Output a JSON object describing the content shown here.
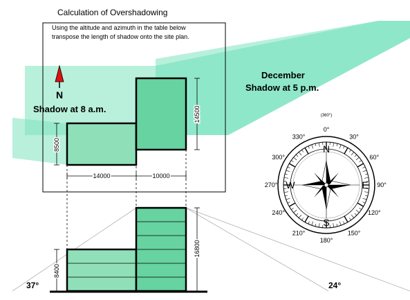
{
  "title": "Calculation of Overshadowing",
  "instructions": {
    "line1": "Using the altitude and azimuth in the table below",
    "line2": "transpose the length of shadow onto the site plan."
  },
  "month": "December",
  "shadow_pm": "Shadow at 5 p.m.",
  "shadow_am": "Shadow at 8 a.m.",
  "north_label": "N",
  "plan_dimensions": {
    "width_low": "14000",
    "width_tall": "10000",
    "depth_low": "8500",
    "depth_tall": "14500"
  },
  "elevation_dimensions": {
    "height_low": "8400",
    "height_tall": "16800"
  },
  "angles": {
    "left": "37°",
    "right": "24°"
  },
  "compass": {
    "cardinals": {
      "n": "N",
      "e": "E",
      "s": "S",
      "w": "W"
    },
    "degree_labels": [
      "0°",
      "30°",
      "60°",
      "90°",
      "120°",
      "150°",
      "180°",
      "210°",
      "240°",
      "270°",
      "300°",
      "330°"
    ],
    "top_small": "(360°)"
  },
  "colors": {
    "shadow": "#7de3c0",
    "building_low": "#8fe0b8",
    "building_tall": "#66d3a0",
    "north_arrow": "#e01010"
  }
}
